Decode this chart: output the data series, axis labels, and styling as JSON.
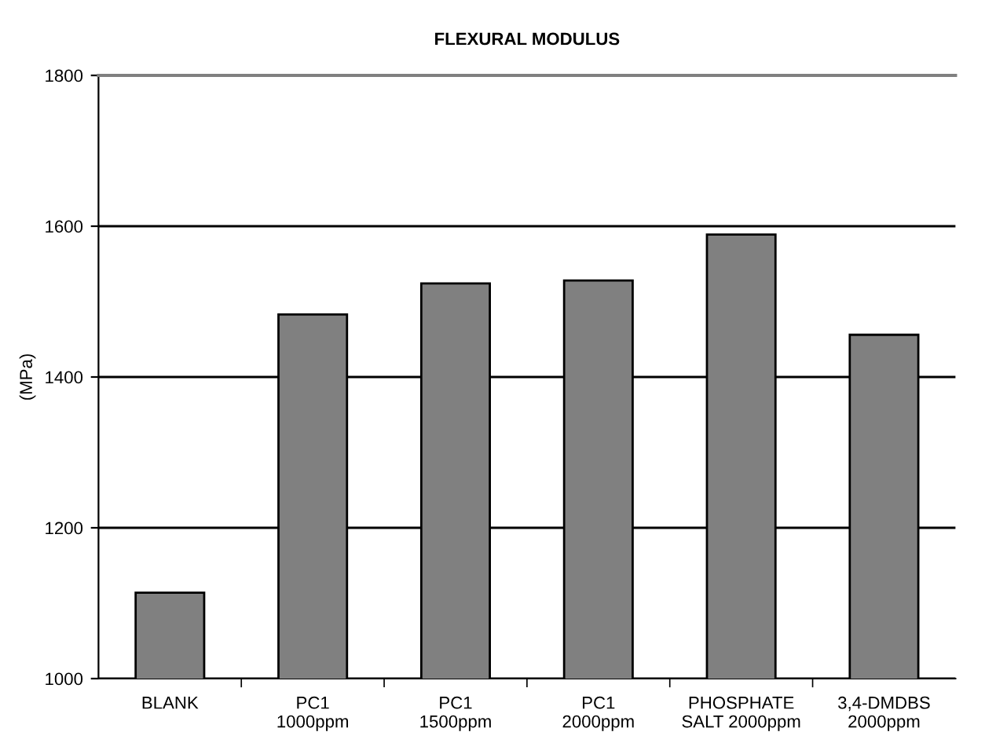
{
  "chart_data": {
    "type": "bar",
    "title": "FLEXURAL MODULUS",
    "ylabel": "(MPa)",
    "categories": [
      "BLANK",
      "PC1\n1000ppm",
      "PC1\n1500ppm",
      "PC1\n2000ppm",
      "PHOSPHATE\nSALT 2000ppm",
      "3,4-DMDBS\n2000ppm"
    ],
    "values": [
      1114,
      1483,
      1524,
      1528,
      1589,
      1456
    ],
    "color": "#808080",
    "ylim": [
      1000,
      1800
    ],
    "yticks": [
      1000,
      1200,
      1400,
      1600,
      1800
    ],
    "grid": "y",
    "legend": false
  }
}
